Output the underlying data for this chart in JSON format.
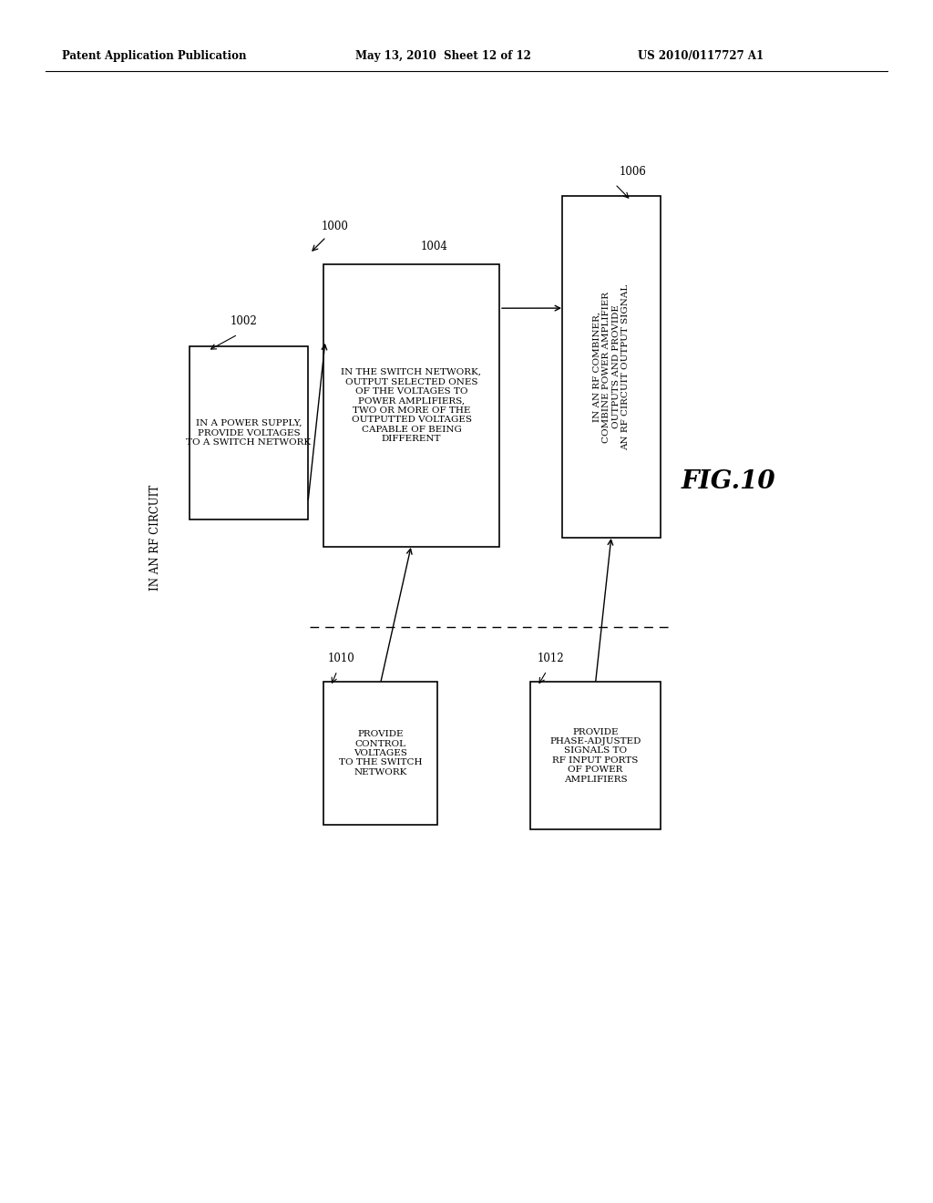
{
  "bg_color": "#ffffff",
  "header_left": "Patent Application Publication",
  "header_mid": "May 13, 2010  Sheet 12 of 12",
  "header_right": "US 2010/0117727 A1",
  "fig_label": "FIG.10",
  "box1002_label": "1002",
  "box1002_text": "IN A POWER SUPPLY,\nPROVIDE VOLTAGES\nTO A SWITCH NETWORK",
  "box1004_label": "1004",
  "box1004_text": "IN THE SWITCH NETWORK,\nOUTPUT SELECTED ONES\nOF THE VOLTAGES TO\nPOWER AMPLIFIERS,\nTWO OR MORE OF THE\nOUTPUTTED VOLTAGES\nCAPABLE OF BEING\nDIFFERENT",
  "box1006_label": "1006",
  "box1006_text": "IN AN RF COMBINER,\nCOMBINE POWER AMPLIFIER\nOUTPUTS AND PROVIDE\nAN RF CIRCUIT OUTPUT SIGNAL",
  "box1010_label": "1010",
  "box1010_text": "PROVIDE\nCONTROL\nVOLTAGES\nTO THE SWITCH\nNETWORK",
  "box1012_label": "1012",
  "box1012_text": "PROVIDE\nPHASE-ADJUSTED\nSIGNALS TO\nRF INPUT PORTS\nOF POWER\nAMPLIFIERS",
  "label1000": "1000",
  "outer_label": "IN AN RF CIRCUIT"
}
